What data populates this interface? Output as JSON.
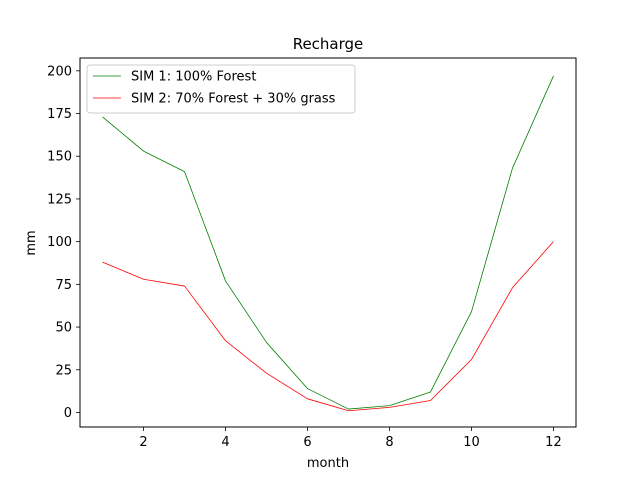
{
  "chart_data": {
    "type": "line",
    "title": "Recharge",
    "xlabel": "month",
    "ylabel": "mm",
    "xlim": [
      0.45,
      12.55
    ],
    "ylim": [
      -8.5,
      207.5
    ],
    "xticks": [
      2,
      4,
      6,
      8,
      10,
      12
    ],
    "yticks": [
      0,
      25,
      50,
      75,
      100,
      125,
      150,
      175,
      200
    ],
    "grid": false,
    "legend_position": "top-left",
    "x": [
      1,
      2,
      3,
      4,
      5,
      6,
      7,
      8,
      9,
      10,
      11,
      12
    ],
    "series": [
      {
        "name": "SIM 1: 100% Forest",
        "color": "#008000",
        "values": [
          173,
          153,
          141,
          77,
          41,
          14,
          2,
          4,
          12,
          59,
          143,
          197
        ]
      },
      {
        "name": "SIM 2: 70% Forest + 30% grass",
        "color": "#ff0000",
        "values": [
          88,
          78,
          74,
          42,
          23,
          8,
          1,
          3,
          7,
          31,
          73,
          100
        ]
      }
    ]
  }
}
